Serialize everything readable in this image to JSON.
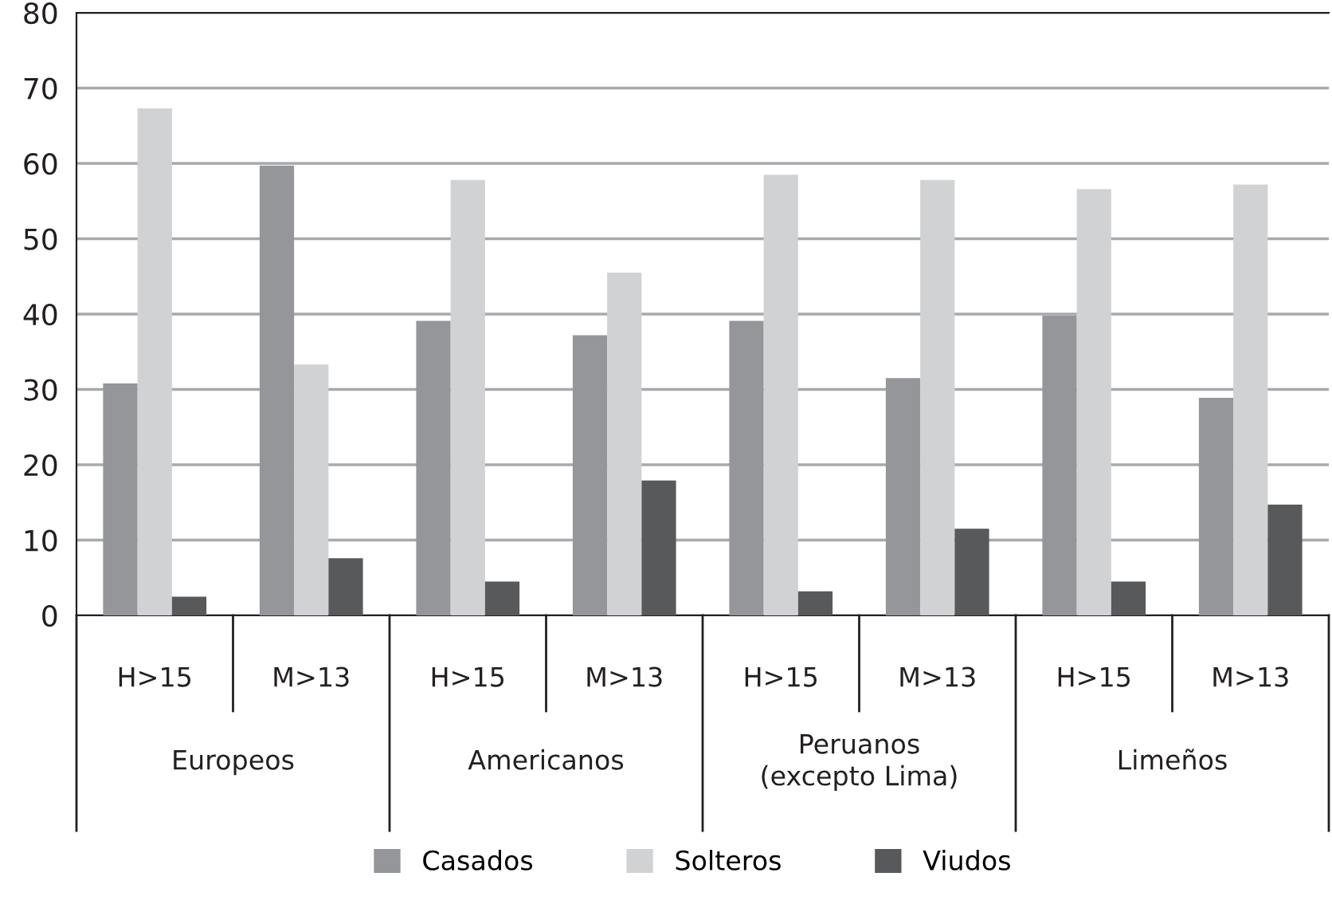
{
  "chart_data": {
    "type": "bar",
    "categories": [
      "H>15",
      "M>13",
      "H>15",
      "M>13",
      "H>15",
      "M>13",
      "H>15",
      "M>13"
    ],
    "series": [
      {
        "name": "Casados",
        "color": "#95969a",
        "values": [
          30.8,
          59.7,
          39.1,
          37.2,
          39.1,
          31.5,
          39.8,
          28.9
        ]
      },
      {
        "name": "Solteros",
        "color": "#d1d2d4",
        "values": [
          67.3,
          33.3,
          57.8,
          45.5,
          58.5,
          57.8,
          56.6,
          57.2
        ]
      },
      {
        "name": "Viudos",
        "color": "#58595b",
        "values": [
          2.5,
          7.6,
          4.5,
          17.9,
          3.2,
          11.5,
          4.5,
          14.7
        ]
      }
    ],
    "annotations": [
      "Europeos",
      "Americanos",
      "Peruanos\n(excepto Lima)",
      "Limeños"
    ],
    "ylim": [
      0,
      80
    ],
    "yticks": [
      0,
      10,
      20,
      30,
      40,
      50,
      60,
      70,
      80
    ],
    "grid": "y",
    "legend": "bottom"
  }
}
